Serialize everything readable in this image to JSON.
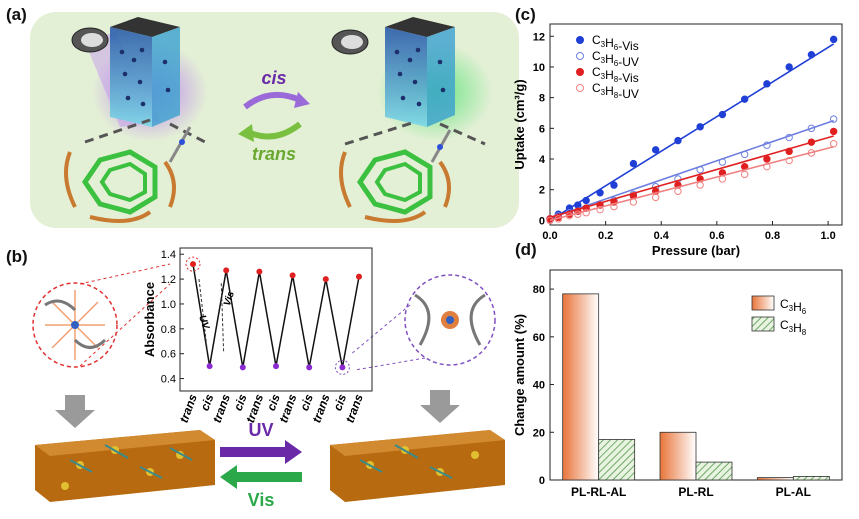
{
  "panels": {
    "a": "(a)",
    "b": "(b)",
    "c": "(c)",
    "d": "(d)"
  },
  "panel_a": {
    "cis_label": "cis",
    "trans_label": "trans",
    "cis_color": "#6a2aa8",
    "trans_color": "#6aa832"
  },
  "panel_b_arrows": {
    "uv_label": "UV",
    "vis_label": "Vis",
    "uv_color": "#6a2aa8",
    "vis_color": "#2aa84a"
  },
  "chart_data": [
    {
      "id": "b",
      "type": "line",
      "ylabel": "Absorbance",
      "ylim": [
        0.3,
        1.45
      ],
      "yticks": [
        0.4,
        0.6,
        0.8,
        1.0,
        1.2,
        1.4
      ],
      "categories": [
        "trans",
        "cis",
        "trans",
        "cis",
        "trans",
        "cis",
        "trans",
        "cis",
        "trans",
        "cis",
        "trans"
      ],
      "values": [
        1.32,
        0.5,
        1.27,
        0.49,
        1.26,
        0.5,
        1.23,
        0.49,
        1.2,
        0.49,
        1.22
      ],
      "annotations": {
        "vis": "Vis",
        "uv": "UV"
      }
    },
    {
      "id": "c",
      "type": "scatter",
      "xlabel": "Pressure (bar)",
      "ylabel": "Uptake (cm³/g)",
      "xlim": [
        0,
        1.05
      ],
      "ylim": [
        -0.3,
        12.8
      ],
      "xticks": [
        0.0,
        0.2,
        0.4,
        0.6,
        0.8,
        1.0
      ],
      "yticks": [
        0,
        2,
        4,
        6,
        8,
        10,
        12
      ],
      "series": [
        {
          "name": "C3H6-Vis",
          "main": "C",
          "sub1": "3",
          "mid": "H",
          "sub2": "6",
          "suffix": "-Vis",
          "color": "#1f3fd6",
          "filled": true,
          "x": [
            0.0,
            0.03,
            0.07,
            0.1,
            0.13,
            0.18,
            0.23,
            0.3,
            0.38,
            0.46,
            0.54,
            0.62,
            0.7,
            0.78,
            0.86,
            0.94,
            1.02
          ],
          "y": [
            0.1,
            0.4,
            0.8,
            1.0,
            1.3,
            1.8,
            2.3,
            3.7,
            4.6,
            5.2,
            6.1,
            6.9,
            7.9,
            8.9,
            10.0,
            10.8,
            11.8
          ],
          "fit": [
            0.0,
            11.5
          ]
        },
        {
          "name": "C3H6-UV",
          "main": "C",
          "sub1": "3",
          "mid": "H",
          "sub2": "6",
          "suffix": "-UV",
          "color": "#6f7fe0",
          "filled": false,
          "x": [
            0.0,
            0.03,
            0.07,
            0.1,
            0.13,
            0.18,
            0.23,
            0.3,
            0.38,
            0.46,
            0.54,
            0.62,
            0.7,
            0.78,
            0.86,
            0.94,
            1.02
          ],
          "y": [
            0.1,
            0.3,
            0.5,
            0.6,
            0.8,
            1.0,
            1.3,
            1.7,
            2.2,
            2.7,
            3.3,
            3.8,
            4.3,
            4.9,
            5.4,
            6.0,
            6.6
          ],
          "fit": [
            0.15,
            6.5
          ]
        },
        {
          "name": "C3H8-Vis",
          "main": "C",
          "sub1": "3",
          "mid": "H",
          "sub2": "8",
          "suffix": "-Vis",
          "color": "#e02020",
          "filled": true,
          "x": [
            0.0,
            0.03,
            0.07,
            0.1,
            0.13,
            0.18,
            0.23,
            0.3,
            0.38,
            0.46,
            0.54,
            0.62,
            0.7,
            0.78,
            0.86,
            0.94,
            1.02
          ],
          "y": [
            0.1,
            0.2,
            0.4,
            0.6,
            0.8,
            1.0,
            1.2,
            1.6,
            1.9,
            2.3,
            2.7,
            3.1,
            3.5,
            4.0,
            4.5,
            5.1,
            5.8
          ],
          "fit": [
            0.2,
            5.5
          ]
        },
        {
          "name": "C3H8-UV",
          "main": "C",
          "sub1": "3",
          "mid": "H",
          "sub2": "8",
          "suffix": "-UV",
          "color": "#f08080",
          "filled": false,
          "x": [
            0.0,
            0.03,
            0.07,
            0.1,
            0.13,
            0.18,
            0.23,
            0.3,
            0.38,
            0.46,
            0.54,
            0.62,
            0.7,
            0.78,
            0.86,
            0.94,
            1.02
          ],
          "y": [
            0.0,
            0.1,
            0.3,
            0.4,
            0.5,
            0.7,
            0.9,
            1.2,
            1.5,
            1.9,
            2.3,
            2.7,
            3.0,
            3.5,
            3.9,
            4.4,
            5.0
          ],
          "fit": [
            0.0,
            4.8
          ]
        }
      ]
    },
    {
      "id": "d",
      "type": "bar",
      "ylabel": "Change amount (%)",
      "ylim": [
        0,
        88
      ],
      "yticks": [
        0,
        20,
        40,
        60,
        80
      ],
      "categories": [
        "PL-RL-AL",
        "PL-RL",
        "PL-AL"
      ],
      "series": [
        {
          "name": "C3H6",
          "main": "C",
          "sub1": "3",
          "mid": "H",
          "sub2": "6",
          "values": [
            78,
            20,
            1
          ],
          "color": "#e8743a"
        },
        {
          "name": "C3H8",
          "main": "C",
          "sub1": "3",
          "mid": "H",
          "sub2": "8",
          "values": [
            17,
            7.5,
            1.5
          ],
          "color": "#3c8c3c"
        }
      ]
    }
  ]
}
